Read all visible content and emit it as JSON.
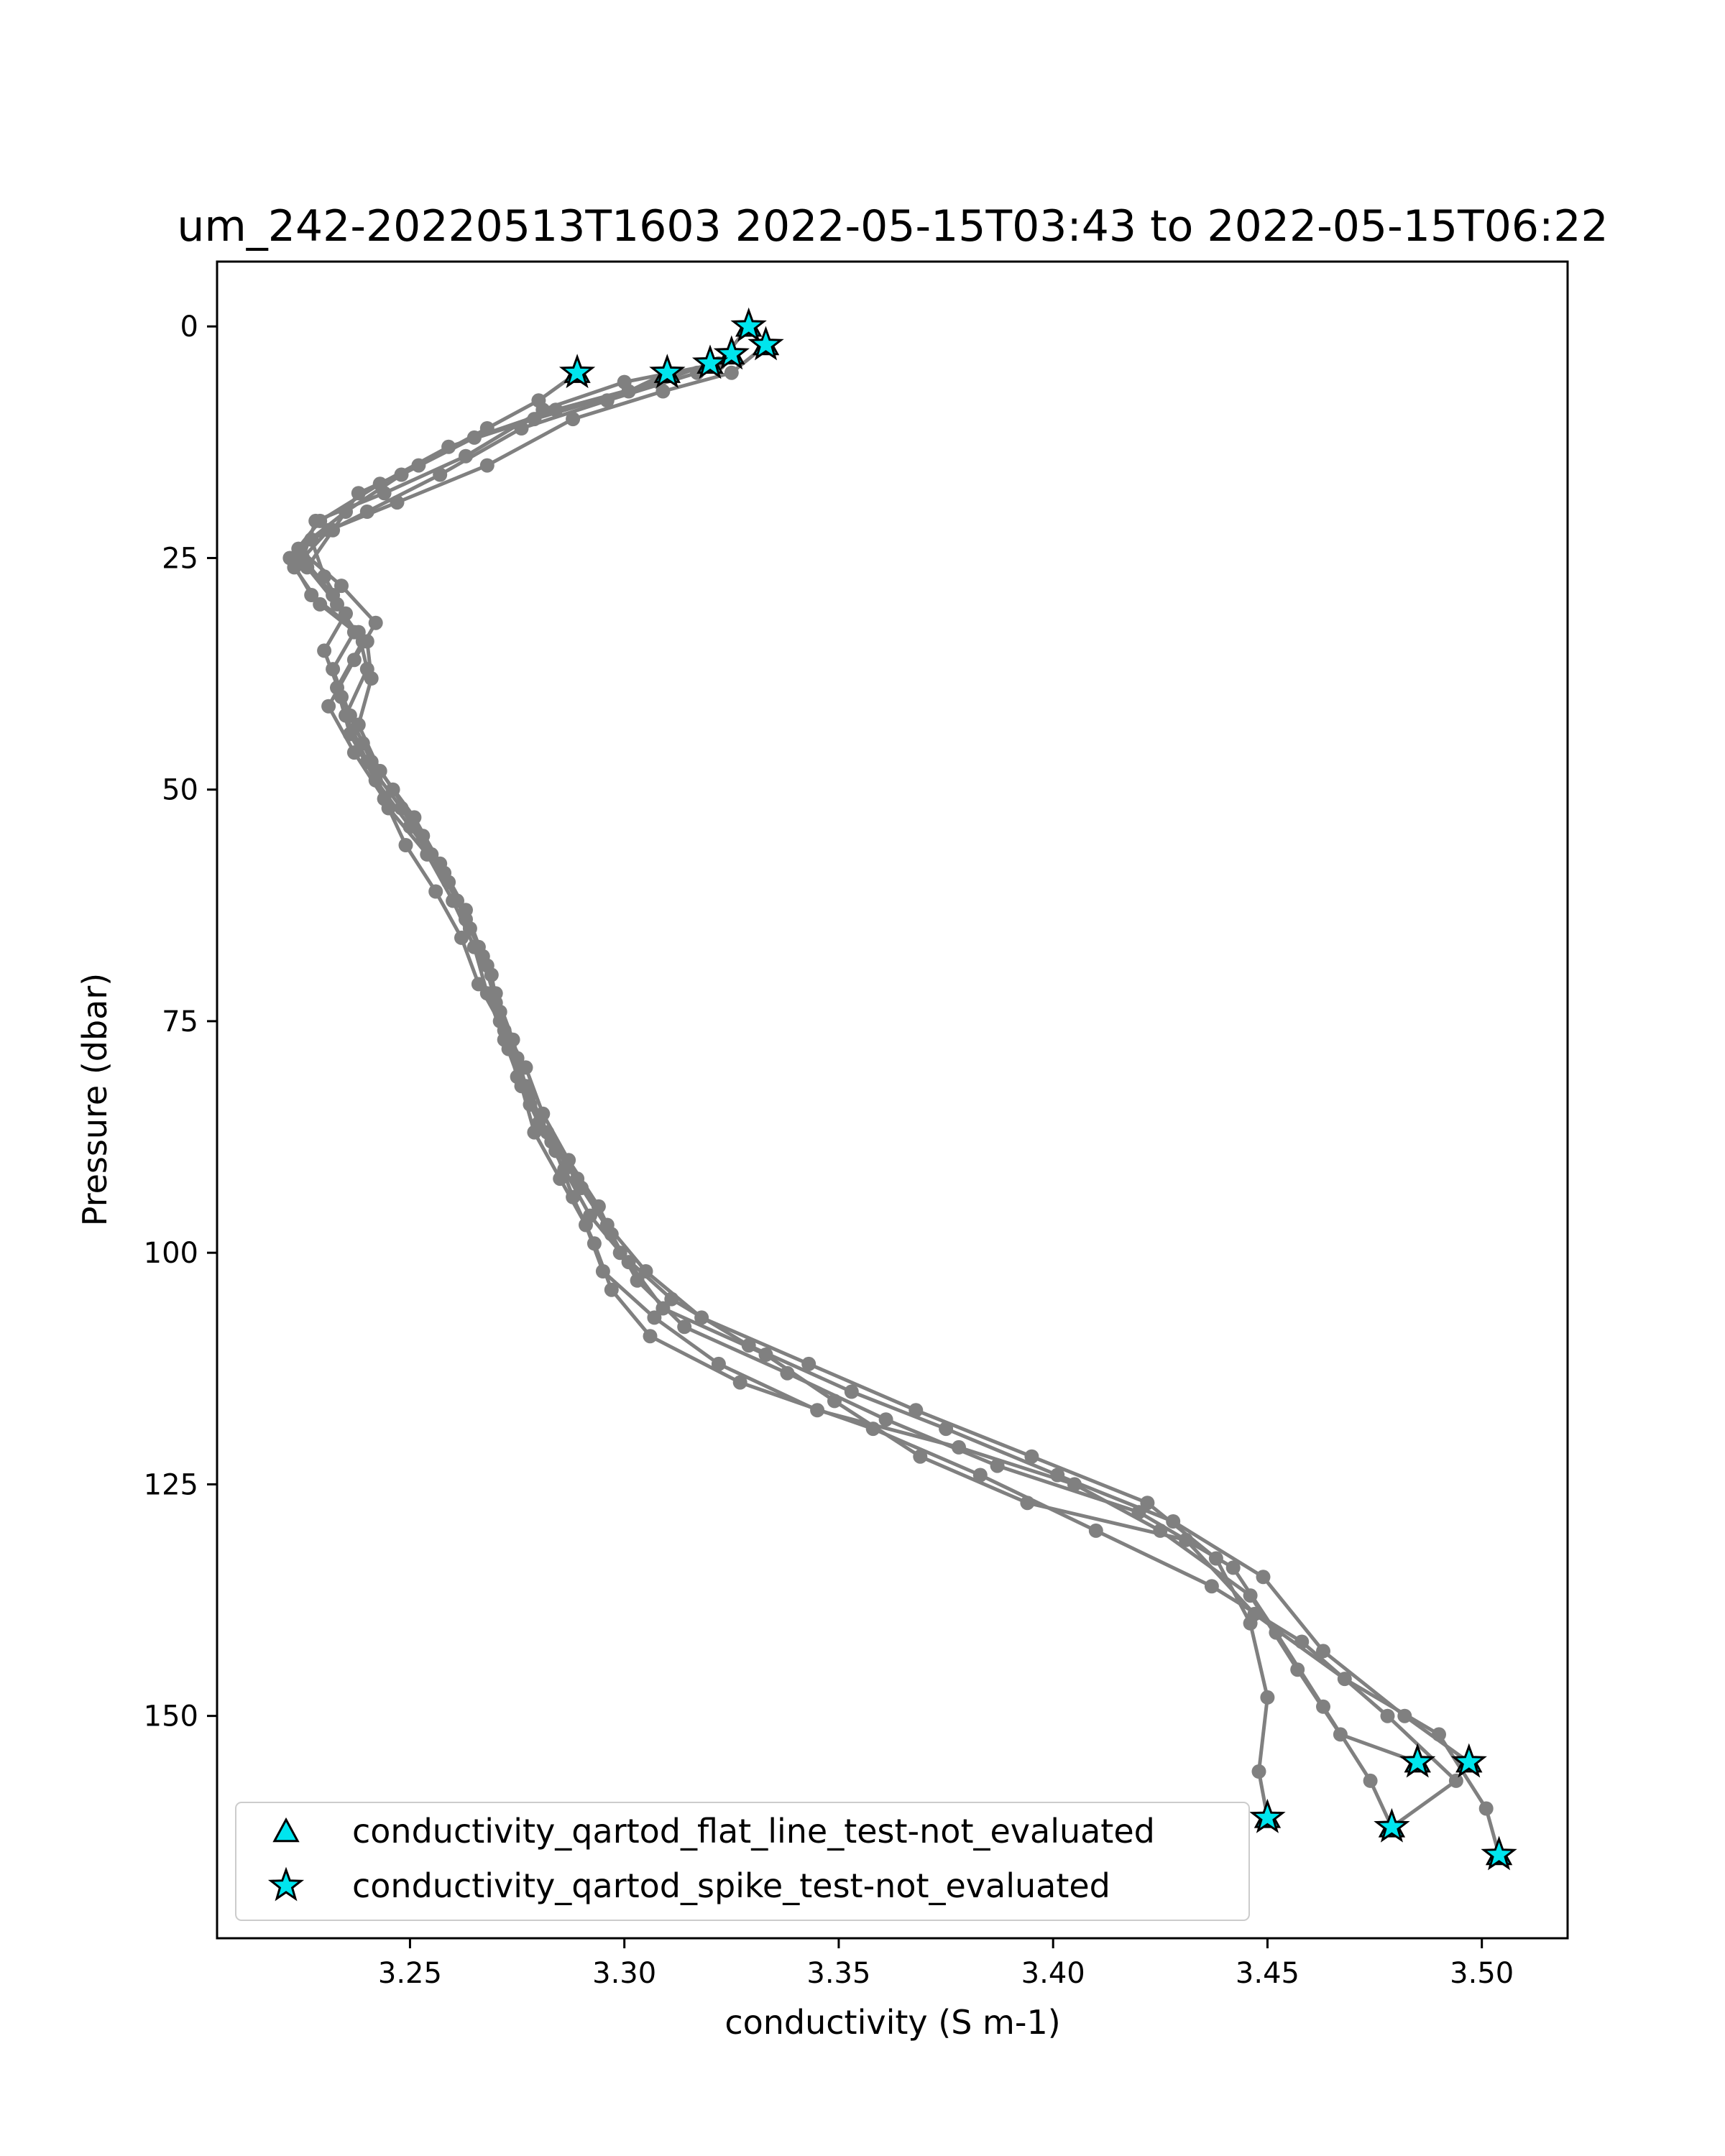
{
  "chart_data": {
    "type": "line",
    "title": "um_242-20220513T1603 2022-05-15T03:43 to 2022-05-15T06:22",
    "xlabel": "conductivity (S m-1)",
    "ylabel": "Pressure (dbar)",
    "xlim": [
      3.205,
      3.52
    ],
    "ylim": [
      174,
      -7
    ],
    "y_inverted": true,
    "grid": false,
    "x_ticks": [
      3.25,
      3.3,
      3.35,
      3.4,
      3.45,
      3.5
    ],
    "x_tick_labels": [
      "3.25",
      "3.30",
      "3.35",
      "3.40",
      "3.45",
      "3.50"
    ],
    "y_ticks": [
      0,
      25,
      50,
      75,
      100,
      125,
      150
    ],
    "y_tick_labels": [
      "0",
      "25",
      "50",
      "75",
      "100",
      "125",
      "150"
    ],
    "line_color": "#808080",
    "marker_color": "#00e5ee",
    "legend_position": "lower-left",
    "legend": [
      {
        "label": "conductivity_qartod_flat_line_test-not_evaluated",
        "marker": "triangle"
      },
      {
        "label": "conductivity_qartod_spike_test-not_evaluated",
        "marker": "star"
      }
    ],
    "series": [
      {
        "values": [
          {
            "x": 3.329,
            "y": 0
          },
          {
            "x": 3.322,
            "y": 4
          },
          {
            "x": 3.3,
            "y": 6
          },
          {
            "x": 3.281,
            "y": 9
          },
          {
            "x": 3.263,
            "y": 14
          },
          {
            "x": 3.244,
            "y": 18
          },
          {
            "x": 3.228,
            "y": 21
          },
          {
            "x": 3.225,
            "y": 25
          },
          {
            "x": 3.232,
            "y": 29
          },
          {
            "x": 3.237,
            "y": 33
          },
          {
            "x": 3.232,
            "y": 37
          },
          {
            "x": 3.236,
            "y": 42
          },
          {
            "x": 3.241,
            "y": 47
          },
          {
            "x": 3.245,
            "y": 52
          },
          {
            "x": 3.254,
            "y": 57
          },
          {
            "x": 3.26,
            "y": 62
          },
          {
            "x": 3.265,
            "y": 67
          },
          {
            "x": 3.268,
            "y": 72
          },
          {
            "x": 3.272,
            "y": 77
          },
          {
            "x": 3.276,
            "y": 82
          },
          {
            "x": 3.279,
            "y": 87
          },
          {
            "x": 3.285,
            "y": 92
          },
          {
            "x": 3.291,
            "y": 97
          },
          {
            "x": 3.295,
            "y": 102
          },
          {
            "x": 3.307,
            "y": 107
          },
          {
            "x": 3.322,
            "y": 112
          },
          {
            "x": 3.345,
            "y": 117
          },
          {
            "x": 3.378,
            "y": 121
          },
          {
            "x": 3.405,
            "y": 125
          },
          {
            "x": 3.425,
            "y": 130
          },
          {
            "x": 3.446,
            "y": 137
          },
          {
            "x": 3.457,
            "y": 145
          },
          {
            "x": 3.467,
            "y": 152
          },
          {
            "x": 3.485,
            "y": 155
          }
        ]
      },
      {
        "values": [
          {
            "x": 3.333,
            "y": 2
          },
          {
            "x": 3.325,
            "y": 5
          },
          {
            "x": 3.309,
            "y": 7
          },
          {
            "x": 3.288,
            "y": 10
          },
          {
            "x": 3.268,
            "y": 15
          },
          {
            "x": 3.247,
            "y": 19
          },
          {
            "x": 3.231,
            "y": 22
          },
          {
            "x": 3.223,
            "y": 26
          },
          {
            "x": 3.229,
            "y": 30
          },
          {
            "x": 3.24,
            "y": 34
          },
          {
            "x": 3.241,
            "y": 38
          },
          {
            "x": 3.238,
            "y": 43
          },
          {
            "x": 3.243,
            "y": 48
          },
          {
            "x": 3.251,
            "y": 53
          },
          {
            "x": 3.257,
            "y": 58
          },
          {
            "x": 3.263,
            "y": 63
          },
          {
            "x": 3.267,
            "y": 68
          },
          {
            "x": 3.27,
            "y": 73
          },
          {
            "x": 3.273,
            "y": 78
          },
          {
            "x": 3.278,
            "y": 83
          },
          {
            "x": 3.283,
            "y": 88
          },
          {
            "x": 3.29,
            "y": 93
          },
          {
            "x": 3.297,
            "y": 98
          },
          {
            "x": 3.303,
            "y": 103
          },
          {
            "x": 3.314,
            "y": 108
          },
          {
            "x": 3.338,
            "y": 113
          },
          {
            "x": 3.361,
            "y": 118
          },
          {
            "x": 3.387,
            "y": 123
          },
          {
            "x": 3.42,
            "y": 128
          },
          {
            "x": 3.442,
            "y": 134
          },
          {
            "x": 3.452,
            "y": 141
          },
          {
            "x": 3.463,
            "y": 149
          },
          {
            "x": 3.474,
            "y": 157
          },
          {
            "x": 3.479,
            "y": 162
          }
        ]
      },
      {
        "values": [
          {
            "x": 3.325,
            "y": 3
          },
          {
            "x": 3.317,
            "y": 5
          },
          {
            "x": 3.296,
            "y": 8
          },
          {
            "x": 3.276,
            "y": 11
          },
          {
            "x": 3.257,
            "y": 16
          },
          {
            "x": 3.24,
            "y": 20
          },
          {
            "x": 3.227,
            "y": 23
          },
          {
            "x": 3.23,
            "y": 27
          },
          {
            "x": 3.235,
            "y": 31
          },
          {
            "x": 3.23,
            "y": 35
          },
          {
            "x": 3.234,
            "y": 40
          },
          {
            "x": 3.239,
            "y": 45
          },
          {
            "x": 3.246,
            "y": 50
          },
          {
            "x": 3.253,
            "y": 55
          },
          {
            "x": 3.259,
            "y": 60
          },
          {
            "x": 3.264,
            "y": 65
          },
          {
            "x": 3.269,
            "y": 70
          },
          {
            "x": 3.271,
            "y": 75
          },
          {
            "x": 3.277,
            "y": 80
          },
          {
            "x": 3.281,
            "y": 85
          },
          {
            "x": 3.287,
            "y": 90
          },
          {
            "x": 3.294,
            "y": 95
          },
          {
            "x": 3.299,
            "y": 100
          },
          {
            "x": 3.311,
            "y": 105
          },
          {
            "x": 3.329,
            "y": 110
          },
          {
            "x": 3.353,
            "y": 115
          },
          {
            "x": 3.375,
            "y": 119
          },
          {
            "x": 3.401,
            "y": 124
          },
          {
            "x": 3.428,
            "y": 129
          },
          {
            "x": 3.449,
            "y": 135
          },
          {
            "x": 3.463,
            "y": 143
          },
          {
            "x": 3.482,
            "y": 150
          },
          {
            "x": 3.497,
            "y": 155
          }
        ]
      },
      {
        "values": [
          {
            "x": 3.32,
            "y": 4
          },
          {
            "x": 3.308,
            "y": 6
          },
          {
            "x": 3.284,
            "y": 9
          },
          {
            "x": 3.265,
            "y": 12
          },
          {
            "x": 3.248,
            "y": 16
          },
          {
            "x": 3.235,
            "y": 20
          },
          {
            "x": 3.224,
            "y": 24
          },
          {
            "x": 3.234,
            "y": 28
          },
          {
            "x": 3.242,
            "y": 32
          },
          {
            "x": 3.237,
            "y": 36
          },
          {
            "x": 3.231,
            "y": 41
          },
          {
            "x": 3.237,
            "y": 46
          },
          {
            "x": 3.244,
            "y": 51
          },
          {
            "x": 3.249,
            "y": 56
          },
          {
            "x": 3.256,
            "y": 61
          },
          {
            "x": 3.262,
            "y": 66
          },
          {
            "x": 3.266,
            "y": 71
          },
          {
            "x": 3.272,
            "y": 76
          },
          {
            "x": 3.275,
            "y": 81
          },
          {
            "x": 3.28,
            "y": 86
          },
          {
            "x": 3.286,
            "y": 91
          },
          {
            "x": 3.292,
            "y": 96
          },
          {
            "x": 3.301,
            "y": 101
          },
          {
            "x": 3.309,
            "y": 106
          },
          {
            "x": 3.333,
            "y": 111
          },
          {
            "x": 3.349,
            "y": 116
          },
          {
            "x": 3.369,
            "y": 122
          },
          {
            "x": 3.394,
            "y": 127
          },
          {
            "x": 3.431,
            "y": 131
          },
          {
            "x": 3.447,
            "y": 139
          },
          {
            "x": 3.468,
            "y": 146
          },
          {
            "x": 3.49,
            "y": 152
          },
          {
            "x": 3.501,
            "y": 160
          },
          {
            "x": 3.504,
            "y": 165
          }
        ]
      },
      {
        "values": [
          {
            "x": 3.31,
            "y": 5
          },
          {
            "x": 3.301,
            "y": 7
          },
          {
            "x": 3.279,
            "y": 10
          },
          {
            "x": 3.259,
            "y": 13
          },
          {
            "x": 3.243,
            "y": 17
          },
          {
            "x": 3.229,
            "y": 21
          },
          {
            "x": 3.222,
            "y": 25
          },
          {
            "x": 3.227,
            "y": 29
          },
          {
            "x": 3.238,
            "y": 33
          },
          {
            "x": 3.24,
            "y": 37
          },
          {
            "x": 3.235,
            "y": 42
          },
          {
            "x": 3.24,
            "y": 47
          },
          {
            "x": 3.248,
            "y": 52
          },
          {
            "x": 3.255,
            "y": 57
          },
          {
            "x": 3.261,
            "y": 62
          },
          {
            "x": 3.266,
            "y": 67
          },
          {
            "x": 3.27,
            "y": 72
          },
          {
            "x": 3.274,
            "y": 77
          },
          {
            "x": 3.277,
            "y": 82
          },
          {
            "x": 3.282,
            "y": 87
          },
          {
            "x": 3.289,
            "y": 92
          },
          {
            "x": 3.296,
            "y": 97
          },
          {
            "x": 3.305,
            "y": 102
          },
          {
            "x": 3.318,
            "y": 107
          },
          {
            "x": 3.343,
            "y": 112
          },
          {
            "x": 3.368,
            "y": 117
          },
          {
            "x": 3.395,
            "y": 122
          },
          {
            "x": 3.422,
            "y": 127
          },
          {
            "x": 3.438,
            "y": 133
          },
          {
            "x": 3.446,
            "y": 140
          },
          {
            "x": 3.45,
            "y": 148
          },
          {
            "x": 3.448,
            "y": 156
          },
          {
            "x": 3.45,
            "y": 161
          }
        ]
      },
      {
        "values": [
          {
            "x": 3.289,
            "y": 5
          },
          {
            "x": 3.28,
            "y": 8
          },
          {
            "x": 3.268,
            "y": 11
          },
          {
            "x": 3.252,
            "y": 15
          },
          {
            "x": 3.238,
            "y": 18
          },
          {
            "x": 3.232,
            "y": 22
          },
          {
            "x": 3.226,
            "y": 26
          },
          {
            "x": 3.233,
            "y": 30
          },
          {
            "x": 3.239,
            "y": 34
          },
          {
            "x": 3.233,
            "y": 39
          },
          {
            "x": 3.236,
            "y": 44
          },
          {
            "x": 3.242,
            "y": 49
          },
          {
            "x": 3.25,
            "y": 54
          },
          {
            "x": 3.258,
            "y": 59
          },
          {
            "x": 3.263,
            "y": 64
          },
          {
            "x": 3.268,
            "y": 69
          },
          {
            "x": 3.271,
            "y": 74
          },
          {
            "x": 3.275,
            "y": 79
          },
          {
            "x": 3.278,
            "y": 84
          },
          {
            "x": 3.284,
            "y": 89
          },
          {
            "x": 3.288,
            "y": 94
          },
          {
            "x": 3.293,
            "y": 99
          },
          {
            "x": 3.297,
            "y": 104
          },
          {
            "x": 3.306,
            "y": 109
          },
          {
            "x": 3.327,
            "y": 114
          },
          {
            "x": 3.358,
            "y": 119
          },
          {
            "x": 3.383,
            "y": 124
          },
          {
            "x": 3.41,
            "y": 130
          },
          {
            "x": 3.437,
            "y": 136
          },
          {
            "x": 3.458,
            "y": 142
          },
          {
            "x": 3.478,
            "y": 150
          },
          {
            "x": 3.494,
            "y": 157
          },
          {
            "x": 3.479,
            "y": 162
          }
        ]
      }
    ],
    "flag_points": [
      {
        "x": 3.329,
        "y": 0,
        "marker": "star"
      },
      {
        "x": 3.333,
        "y": 2,
        "marker": "star"
      },
      {
        "x": 3.325,
        "y": 3,
        "marker": "star"
      },
      {
        "x": 3.32,
        "y": 4,
        "marker": "star"
      },
      {
        "x": 3.31,
        "y": 5,
        "marker": "star"
      },
      {
        "x": 3.289,
        "y": 5,
        "marker": "star"
      },
      {
        "x": 3.485,
        "y": 155,
        "marker": "star"
      },
      {
        "x": 3.497,
        "y": 155,
        "marker": "star"
      },
      {
        "x": 3.45,
        "y": 161,
        "marker": "star"
      },
      {
        "x": 3.479,
        "y": 162,
        "marker": "star"
      },
      {
        "x": 3.504,
        "y": 165,
        "marker": "star"
      }
    ]
  }
}
